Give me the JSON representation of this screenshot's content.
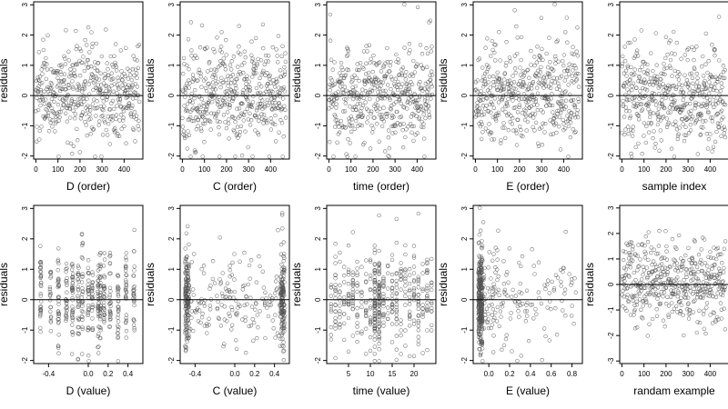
{
  "figure": {
    "background": "#ffffff",
    "point_color": "#555555",
    "line_color": "#000000"
  },
  "chart_data": [
    {
      "id": "d_order",
      "type": "scatter",
      "ylabel": "residuals",
      "xlabel": "D (order)",
      "xlim": [
        -10,
        485
      ],
      "ylim": [
        -2.1,
        3.1
      ],
      "xticks": [
        0,
        100,
        200,
        300,
        400
      ],
      "yticks": [
        -2,
        -1,
        0,
        1,
        2,
        3
      ],
      "hline": 0,
      "x_kind": "order",
      "n_points": 470
    },
    {
      "id": "c_order",
      "type": "scatter",
      "ylabel": "residuals",
      "xlabel": "C (order)",
      "xlim": [
        -10,
        485
      ],
      "ylim": [
        -2.1,
        3.1
      ],
      "xticks": [
        0,
        100,
        200,
        300,
        400
      ],
      "yticks": [
        -2,
        -1,
        0,
        1,
        2,
        3
      ],
      "hline": 0,
      "x_kind": "order",
      "n_points": 470
    },
    {
      "id": "time_order",
      "type": "scatter",
      "ylabel": "residuals",
      "xlabel": "time (order)",
      "xlim": [
        -10,
        485
      ],
      "ylim": [
        -2.1,
        3.1
      ],
      "xticks": [
        0,
        100,
        200,
        300,
        400
      ],
      "yticks": [
        -2,
        -1,
        0,
        1,
        2,
        3
      ],
      "hline": 0,
      "x_kind": "order",
      "n_points": 470
    },
    {
      "id": "e_order",
      "type": "scatter",
      "ylabel": "residuals",
      "xlabel": "E (order)",
      "xlim": [
        -10,
        485
      ],
      "ylim": [
        -2.1,
        3.1
      ],
      "xticks": [
        0,
        100,
        200,
        300,
        400
      ],
      "yticks": [
        -2,
        -1,
        0,
        1,
        2,
        3
      ],
      "hline": 0,
      "x_kind": "order",
      "n_points": 470
    },
    {
      "id": "sample_index",
      "type": "scatter",
      "ylabel": "residuals",
      "xlabel": "sample index",
      "xlim": [
        -10,
        485
      ],
      "ylim": [
        -2.1,
        3.1
      ],
      "xticks": [
        0,
        100,
        200,
        300,
        400
      ],
      "yticks": [
        -2,
        -1,
        0,
        1,
        2,
        3
      ],
      "hline": 0,
      "x_kind": "order",
      "n_points": 470
    },
    {
      "id": "d_value",
      "type": "scatter",
      "ylabel": "residuals",
      "xlabel": "D (value)",
      "xlim": [
        -0.55,
        0.55
      ],
      "ylim": [
        -2.1,
        3.1
      ],
      "xticks": [
        -0.4,
        0,
        0.2,
        0.4
      ],
      "xtick_labels": [
        "-0.4",
        "0.0",
        "0.2",
        "0.4"
      ],
      "yticks": [
        -2,
        -1,
        0,
        1,
        2,
        3
      ],
      "hline": 0,
      "x_kind": "value",
      "x_dist": "columns",
      "x_range": [
        -0.48,
        0.48
      ],
      "x_columns": [
        -0.48,
        -0.38,
        -0.3,
        -0.22,
        -0.16,
        -0.1,
        -0.06,
        0.0,
        0.04,
        0.1,
        0.12,
        0.16,
        0.22,
        0.3,
        0.38,
        0.46
      ],
      "n_points": 470
    },
    {
      "id": "c_value",
      "type": "scatter",
      "ylabel": "residuals",
      "xlabel": "C (value)",
      "xlim": [
        -0.55,
        0.55
      ],
      "ylim": [
        -2.1,
        3.1
      ],
      "xticks": [
        -0.4,
        0,
        0.2,
        0.4
      ],
      "xtick_labels": [
        "-0.4",
        "0.0",
        "0.2",
        "0.4"
      ],
      "yticks": [
        -2,
        -1,
        0,
        1,
        2,
        3
      ],
      "hline": 0,
      "x_kind": "value",
      "x_dist": "edges",
      "x_range": [
        -0.5,
        0.5
      ],
      "n_points": 470
    },
    {
      "id": "time_value",
      "type": "scatter",
      "ylabel": "residuals",
      "xlabel": "time (value)",
      "xlim": [
        0,
        25
      ],
      "ylim": [
        -2.1,
        3.1
      ],
      "xticks": [
        5,
        10,
        15,
        20
      ],
      "yticks": [
        -2,
        -1,
        0,
        1,
        2,
        3
      ],
      "hline": 0,
      "x_kind": "value",
      "x_dist": "integers",
      "x_range": [
        1,
        24
      ],
      "n_points": 470
    },
    {
      "id": "e_value",
      "type": "scatter",
      "ylabel": "residuals",
      "xlabel": "E (value)",
      "xlim": [
        -0.15,
        0.9
      ],
      "ylim": [
        -2.1,
        3.1
      ],
      "xticks": [
        0,
        0.2,
        0.4,
        0.6,
        0.8
      ],
      "xtick_labels": [
        "0.0",
        "0.2",
        "0.4",
        "0.6",
        "0.8"
      ],
      "yticks": [
        -2,
        -1,
        0,
        1,
        2,
        3
      ],
      "hline": 0,
      "x_kind": "value",
      "x_dist": "skewed",
      "x_range": [
        -0.1,
        0.85
      ],
      "n_points": 470
    },
    {
      "id": "random_example",
      "type": "scatter",
      "ylabel": "residuals",
      "xlabel": "randam example",
      "xlim": [
        -10,
        485
      ],
      "ylim": [
        -3.1,
        3.1
      ],
      "xticks": [
        0,
        100,
        200,
        300,
        400
      ],
      "yticks": [
        -3,
        -2,
        -1,
        0,
        1,
        2,
        3
      ],
      "hline": 0,
      "x_kind": "order",
      "n_points": 470
    }
  ]
}
